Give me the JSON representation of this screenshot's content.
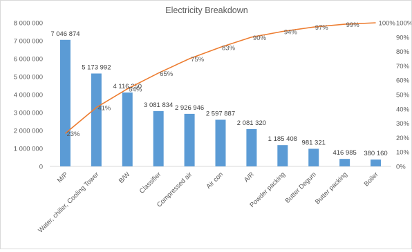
{
  "chart_data": {
    "type": "bar",
    "title": "Electricity Breakdown",
    "xlabel": "",
    "ylabel": "",
    "categories": [
      "M/P",
      "Water, chiller, Cooling Tower",
      "B/W",
      "Classifier",
      "Compressed air",
      "Air con",
      "A/R",
      "Powder packing",
      "Butter Degum",
      "Butter packing",
      "Boiler"
    ],
    "series": [
      {
        "type": "bar",
        "values": [
          7046874,
          5173992,
          4116250,
          3081834,
          2926946,
          2597887,
          2081320,
          1185408,
          981321,
          416985,
          380160
        ],
        "value_labels": [
          "7 046 874",
          "5 173 992",
          "4 116 250",
          "3 081 834",
          "2 926 946",
          "2 597 887",
          "2 081 320",
          "1 185 408",
          "981 321",
          "416 985",
          "380 160"
        ],
        "color": "#5b9bd5"
      },
      {
        "type": "line",
        "axis": "secondary",
        "values": [
          23,
          41,
          54,
          65,
          75,
          83,
          90,
          94,
          97,
          99,
          100
        ],
        "value_labels": [
          "23%",
          "41%",
          "54%",
          "65%",
          "75%",
          "83%",
          "90%",
          "94%",
          "97%",
          "99%",
          "100%"
        ],
        "color": "#ed7d31"
      }
    ],
    "ylim": [
      0,
      8000000
    ],
    "y_ticks": [
      "0",
      "1 000 000",
      "2 000 000",
      "3 000 000",
      "4 000 000",
      "5 000 000",
      "6 000 000",
      "7 000 000",
      "8 000 000"
    ],
    "y2lim": [
      0,
      100
    ],
    "y2_ticks": [
      "0%",
      "10%",
      "20%",
      "30%",
      "40%",
      "50%",
      "60%",
      "70%",
      "80%",
      "90%",
      "100%"
    ],
    "grid": false,
    "legend": "none"
  }
}
